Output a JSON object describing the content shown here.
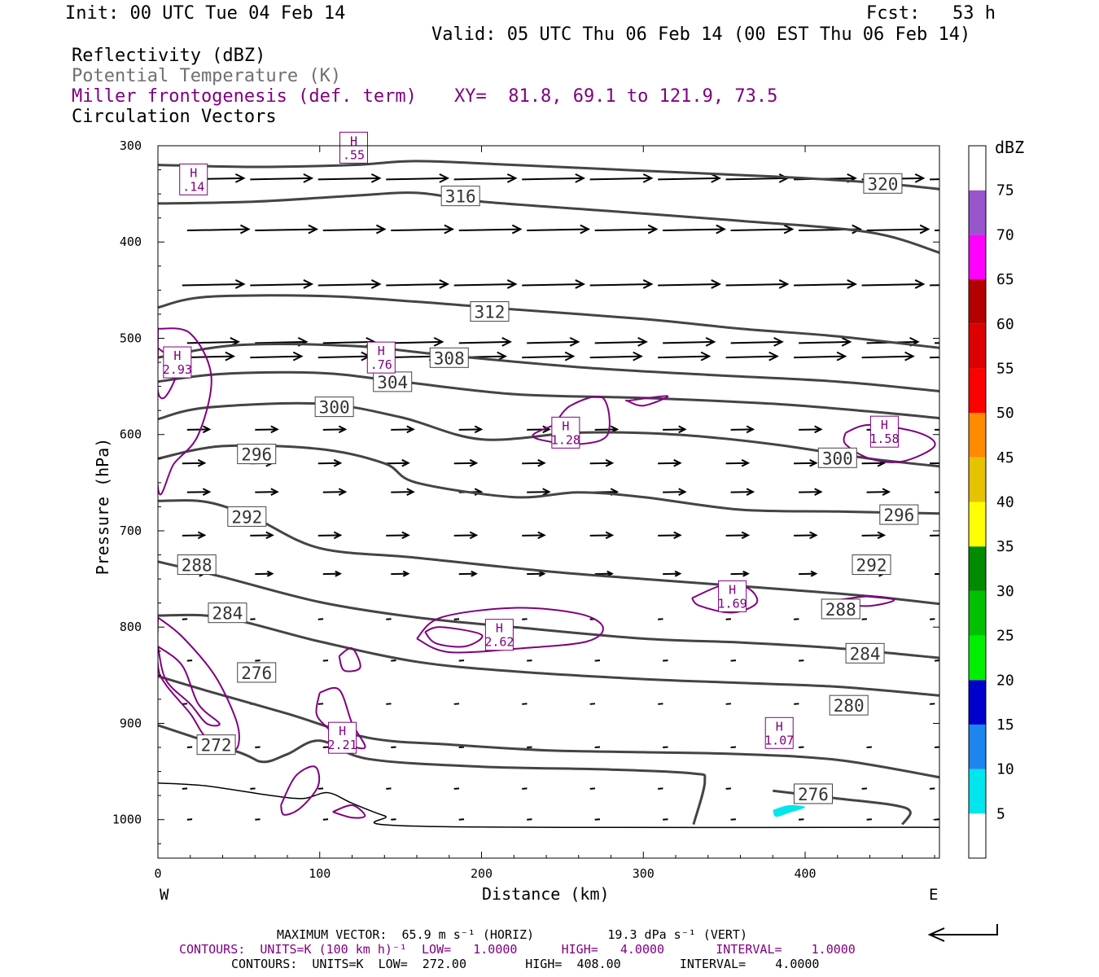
{
  "header": {
    "init": "Init: 00 UTC Tue 04 Feb 14",
    "fcst": "Fcst:   53 h",
    "valid": "Valid: 05 UTC Thu 06 Feb 14 (00 EST Thu 06 Feb 14)",
    "fields": [
      {
        "text": "Reflectivity (dBZ)",
        "color": "#000000"
      },
      {
        "text": "Potential Temperature (K)",
        "color": "#6f6f6f"
      },
      {
        "text": "Miller frontogenesis (def. term)",
        "color": "#800080"
      },
      {
        "text": "Circulation Vectors",
        "color": "#000000"
      }
    ],
    "xy": "XY=  81.8, 69.1 to 121.9, 73.5"
  },
  "footer": {
    "max_vector": "MAXIMUM VECTOR:  65.9 m s⁻¹ (HORIZ)          19.3 dPa s⁻¹ (VERT)",
    "contours_frontogenesis": "CONTOURS:  UNITS=K (100 km h)⁻¹  LOW=   1.0000      HIGH=   4.0000       INTERVAL=    1.0000",
    "contours_theta": "CONTOURS:  UNITS=K  LOW=  272.00        HIGH=  408.00        INTERVAL=    4.0000"
  },
  "colors": {
    "theta": "#444444",
    "frontogenesis": "#800080",
    "vectors": "#000000",
    "reflectivity_patch": "#00e5ee"
  },
  "chart_data": {
    "type": "cross-section",
    "xlabel": "Distance (km)",
    "ylabel": "Pressure (hPa)",
    "xlim": [
      0,
      483
    ],
    "ylim": [
      1040,
      300
    ],
    "x_ticks": [
      0,
      100,
      200,
      300,
      400
    ],
    "y_ticks": [
      300,
      400,
      500,
      600,
      700,
      800,
      900,
      1000
    ],
    "x_end_labels": {
      "left": "W",
      "right": "E"
    },
    "theta_contours": [
      {
        "label": "320",
        "label_at": [
          448,
          340
        ],
        "points": [
          [
            0,
            320
          ],
          [
            60,
            322
          ],
          [
            120,
            320
          ],
          [
            160,
            316
          ],
          [
            220,
            320
          ],
          [
            300,
            326
          ],
          [
            380,
            332
          ],
          [
            440,
            338
          ],
          [
            483,
            345
          ]
        ]
      },
      {
        "label": "316",
        "label_at": [
          187,
          353
        ],
        "points": [
          [
            0,
            360
          ],
          [
            60,
            358
          ],
          [
            120,
            352
          ],
          [
            160,
            349
          ],
          [
            200,
            358
          ],
          [
            280,
            368
          ],
          [
            360,
            378
          ],
          [
            440,
            390
          ],
          [
            483,
            411
          ]
        ]
      },
      {
        "label": "312",
        "label_at": [
          205,
          473
        ],
        "points": [
          [
            0,
            468
          ],
          [
            30,
            457
          ],
          [
            100,
            456
          ],
          [
            160,
            462
          ],
          [
            220,
            470
          ],
          [
            300,
            480
          ],
          [
            360,
            490
          ],
          [
            420,
            498
          ],
          [
            483,
            510
          ]
        ]
      },
      {
        "label": "308",
        "label_at": [
          180,
          521
        ],
        "points": [
          [
            0,
            520
          ],
          [
            50,
            507
          ],
          [
            120,
            508
          ],
          [
            180,
            518
          ],
          [
            260,
            530
          ],
          [
            340,
            538
          ],
          [
            420,
            545
          ],
          [
            483,
            555
          ]
        ]
      },
      {
        "label": "304",
        "label_at": [
          145,
          546
        ],
        "points": [
          [
            0,
            545
          ],
          [
            40,
            537
          ],
          [
            100,
            536
          ],
          [
            150,
            545
          ],
          [
            220,
            558
          ],
          [
            300,
            562
          ],
          [
            380,
            568
          ],
          [
            440,
            576
          ],
          [
            483,
            583
          ]
        ]
      },
      {
        "label": "300",
        "label_at": [
          109,
          572
        ],
        "points": [
          [
            0,
            584
          ],
          [
            30,
            572
          ],
          [
            100,
            568
          ],
          [
            150,
            582
          ],
          [
            200,
            605
          ],
          [
            260,
            598
          ],
          [
            320,
            600
          ],
          [
            380,
            610
          ],
          [
            440,
            625
          ],
          [
            483,
            633
          ]
        ],
        "extra_labels": [
          [
            420,
            625
          ]
        ]
      },
      {
        "label": "296",
        "label_at": [
          61,
          621
        ],
        "points": [
          [
            0,
            625
          ],
          [
            40,
            612
          ],
          [
            100,
            615
          ],
          [
            140,
            630
          ],
          [
            160,
            650
          ],
          [
            220,
            665
          ],
          [
            260,
            660
          ],
          [
            300,
            665
          ],
          [
            360,
            678
          ],
          [
            420,
            680
          ],
          [
            483,
            682
          ]
        ],
        "extra_labels": [
          [
            458,
            684
          ]
        ]
      },
      {
        "label": "292",
        "label_at": [
          55,
          686
        ],
        "points": [
          [
            0,
            669
          ],
          [
            30,
            670
          ],
          [
            60,
            687
          ],
          [
            100,
            718
          ],
          [
            160,
            728
          ],
          [
            240,
            742
          ],
          [
            300,
            750
          ],
          [
            380,
            760
          ],
          [
            440,
            768
          ],
          [
            483,
            776
          ]
        ],
        "extra_labels": [
          [
            441,
            736
          ]
        ]
      },
      {
        "label": "288",
        "label_at": [
          24,
          736
        ],
        "points": [
          [
            0,
            732
          ],
          [
            40,
            748
          ],
          [
            100,
            774
          ],
          [
            160,
            790
          ],
          [
            220,
            800
          ],
          [
            300,
            812
          ],
          [
            360,
            816
          ],
          [
            420,
            822
          ],
          [
            483,
            832
          ]
        ],
        "extra_labels": [
          [
            422,
            782
          ]
        ]
      },
      {
        "label": "284",
        "label_at": [
          43,
          786
        ],
        "points": [
          [
            0,
            788
          ],
          [
            40,
            790
          ],
          [
            100,
            815
          ],
          [
            160,
            836
          ],
          [
            220,
            846
          ],
          [
            300,
            854
          ],
          [
            360,
            858
          ],
          [
            420,
            862
          ],
          [
            483,
            871
          ]
        ],
        "extra_labels": [
          [
            437,
            828
          ]
        ]
      },
      {
        "label": "280",
        "label_at": [
          427,
          882
        ],
        "points": [
          [
            0,
            851
          ],
          [
            30,
            866
          ],
          [
            80,
            890
          ],
          [
            130,
            915
          ],
          [
            180,
            922
          ],
          [
            240,
            928
          ],
          [
            300,
            930
          ],
          [
            360,
            932
          ],
          [
            420,
            938
          ],
          [
            483,
            956
          ]
        ]
      },
      {
        "label": "276",
        "label_at": [
          61,
          848
        ],
        "points": [
          [
            0,
            902
          ],
          [
            50,
            930
          ],
          [
            65,
            940
          ],
          [
            80,
            932
          ],
          [
            100,
            918
          ],
          [
            130,
            937
          ],
          [
            200,
            945
          ],
          [
            280,
            948
          ],
          [
            330,
            952
          ],
          [
            338,
            960
          ],
          [
            331,
            1005
          ]
        ],
        "extra_labels": [
          [
            405,
            974
          ]
        ]
      },
      {
        "label": "276",
        "label_at": [
          405,
          974
        ],
        "points": [
          [
            380,
            970
          ],
          [
            420,
            978
          ],
          [
            455,
            985
          ],
          [
            465,
            992
          ],
          [
            460,
            1005
          ]
        ]
      },
      {
        "label": "272",
        "label_at": [
          36,
          923
        ],
        "points": [
          [
            0,
            962
          ],
          [
            30,
            965
          ],
          [
            70,
            975
          ],
          [
            90,
            978
          ],
          [
            105,
            972
          ],
          [
            120,
            983
          ],
          [
            140,
            996
          ],
          [
            165,
            1007
          ],
          [
            483,
            1008
          ]
        ]
      }
    ],
    "frontogenesis_maxima": [
      {
        "label": "H",
        "value": ".55",
        "at": [
          121,
          302
        ]
      },
      {
        "label": "H",
        "value": ".14",
        "at": [
          22,
          335
        ]
      },
      {
        "label": "H",
        "value": "2.93",
        "at": [
          12,
          525
        ]
      },
      {
        "label": "H",
        "value": ".76",
        "at": [
          138,
          520
        ]
      },
      {
        "label": "H",
        "value": "1.28",
        "at": [
          252,
          598
        ]
      },
      {
        "label": "H",
        "value": "1.58",
        "at": [
          449,
          597
        ]
      },
      {
        "label": "H",
        "value": "1.69",
        "at": [
          355,
          768
        ]
      },
      {
        "label": "H",
        "value": "2.62",
        "at": [
          211,
          808
        ]
      },
      {
        "label": "H",
        "value": "2.21",
        "at": [
          114,
          915
        ]
      },
      {
        "label": "H",
        "value": "1.07",
        "at": [
          384,
          910
        ]
      }
    ],
    "reflectivity_colorbar": {
      "unit": "dBZ",
      "levels": [
        "5",
        "10",
        "15",
        "20",
        "25",
        "30",
        "35",
        "40",
        "45",
        "50",
        "55",
        "60",
        "65",
        "70",
        "75"
      ],
      "colors": [
        "#ffffff",
        "#00e5ee",
        "#1c86ee",
        "#0000cd",
        "#00ee00",
        "#00c000",
        "#008b00",
        "#ffff00",
        "#e6c200",
        "#ff8c00",
        "#ff0000",
        "#dd0000",
        "#b40000",
        "#ff00ff",
        "#9955cc",
        "#ffffff"
      ]
    },
    "vector_rows_hpa": [
      335,
      388,
      445,
      505,
      520,
      595,
      630,
      660,
      705,
      745,
      792,
      835,
      880,
      925,
      968,
      1000
    ]
  }
}
